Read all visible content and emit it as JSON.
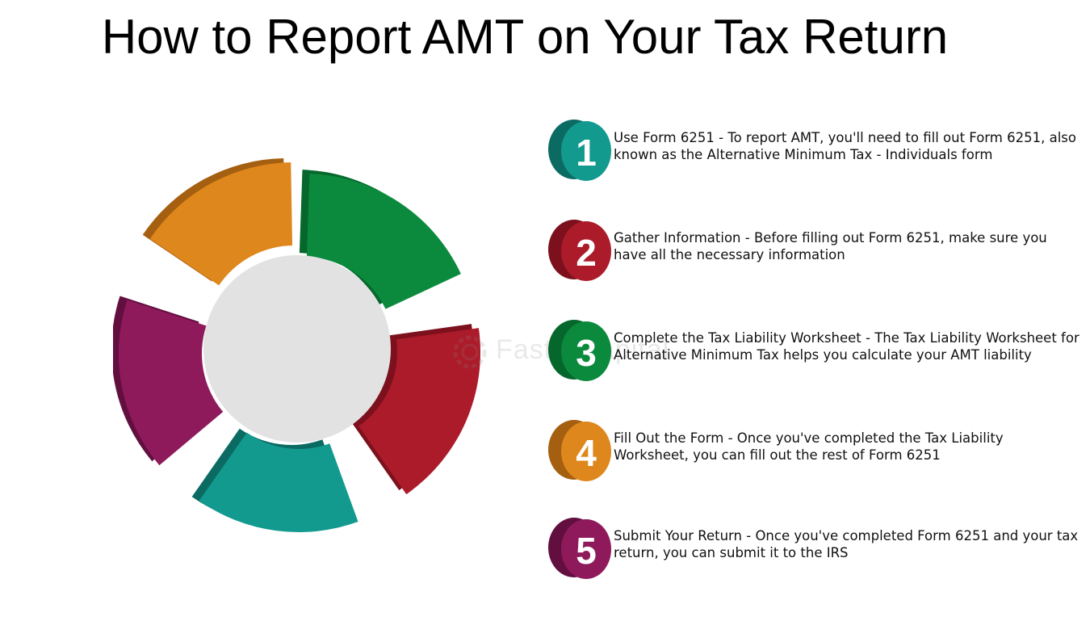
{
  "title": "How to Report AMT on Your Tax Return",
  "ring": {
    "segment_colors": [
      "#0b8a3e",
      "#ac1b2a",
      "#129a8f",
      "#8e1a5c",
      "#de871c"
    ],
    "segment_shadows": [
      "#06672c",
      "#7c111d",
      "#0b6b63",
      "#620f3f",
      "#a55f10"
    ],
    "center_color": "#e2e2e2"
  },
  "steps": [
    {
      "number": "1",
      "color": "#129a8f",
      "dark": "#0b6b63",
      "text": "Use Form 6251 - To report AMT, you'll need to fill out Form 6251, also known as the Alternative Minimum Tax - Individuals form"
    },
    {
      "number": "2",
      "color": "#ac1b2a",
      "dark": "#7c111d",
      "text": "Gather Information - Before filling out Form 6251, make sure you have all the necessary information"
    },
    {
      "number": "3",
      "color": "#0b8a3e",
      "dark": "#06672c",
      "text": "Complete the Tax Liability Worksheet - The Tax Liability Worksheet for Alternative Minimum Tax helps you calculate your AMT liability"
    },
    {
      "number": "4",
      "color": "#de871c",
      "dark": "#a55f10",
      "text": "Fill Out the Form - Once you've completed the Tax Liability Worksheet, you can fill out the rest of Form 6251"
    },
    {
      "number": "5",
      "color": "#8e1a5c",
      "dark": "#620f3f",
      "text": "Submit Your Return - Once you've completed Form 6251 and your tax return, you can submit it to the IRS"
    }
  ],
  "watermark": "FasterCapital"
}
